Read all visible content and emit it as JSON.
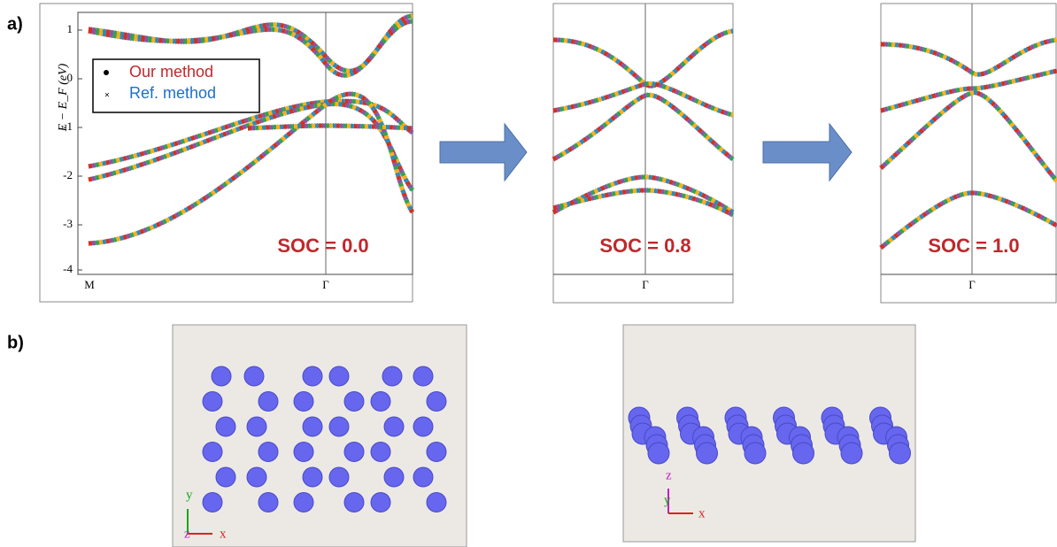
{
  "panels": {
    "a": {
      "label": "a)",
      "y_axis_label": "E − E_F (eV)",
      "y_ticks": [
        "1",
        "0",
        "-1",
        "-2",
        "-3",
        "-4"
      ],
      "x_ticks": [
        "M",
        "Γ"
      ],
      "legend": [
        "Our method",
        "Ref. method"
      ],
      "plots": [
        {
          "x_tick": "Γ",
          "annotation": "SOC = 0.0"
        },
        {
          "x_tick": "Γ",
          "annotation": "SOC = 0.8"
        },
        {
          "x_tick": "Γ",
          "annotation": "SOC = 1.0"
        }
      ]
    },
    "b": {
      "label": "b)",
      "views": [
        {
          "axes": [
            "y",
            "z",
            "x"
          ]
        },
        {
          "axes": [
            "z",
            "y",
            "x"
          ]
        }
      ]
    }
  }
}
